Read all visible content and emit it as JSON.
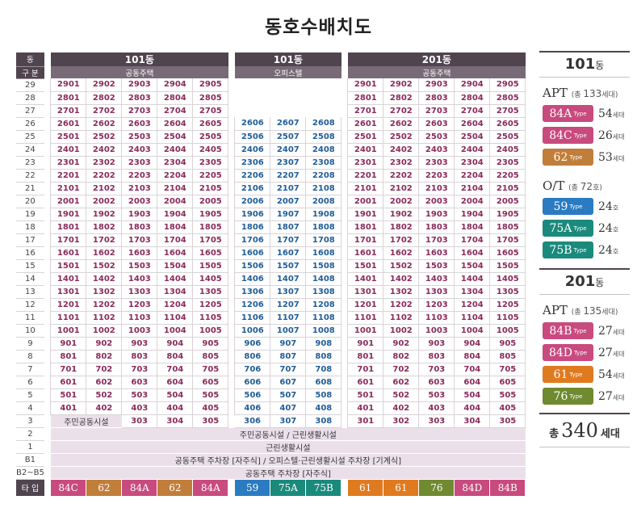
{
  "title": "동호수배치도",
  "header": {
    "row1_label": "동",
    "row2_label": "구 분",
    "blocks": [
      {
        "name": "101동",
        "kind": "공동주택"
      },
      {
        "name": "101동",
        "kind": "오피스텔"
      },
      {
        "name": "201동",
        "kind": "공동주택"
      }
    ]
  },
  "floors": [
    {
      "f": "29",
      "a": [
        "2901",
        "2902",
        "2903",
        "2904",
        "2905"
      ],
      "o": [],
      "b": [
        "2901",
        "2902",
        "2903",
        "2904",
        "2905"
      ]
    },
    {
      "f": "28",
      "a": [
        "2801",
        "2802",
        "2803",
        "2804",
        "2805"
      ],
      "o": [],
      "b": [
        "2801",
        "2802",
        "2803",
        "2804",
        "2805"
      ]
    },
    {
      "f": "27",
      "a": [
        "2701",
        "2702",
        "2703",
        "2704",
        "2705"
      ],
      "o": [],
      "b": [
        "2701",
        "2702",
        "2703",
        "2704",
        "2705"
      ]
    },
    {
      "f": "26",
      "a": [
        "2601",
        "2602",
        "2603",
        "2604",
        "2605"
      ],
      "o": [
        "2606",
        "2607",
        "2608"
      ],
      "b": [
        "2601",
        "2602",
        "2603",
        "2604",
        "2605"
      ]
    },
    {
      "f": "25",
      "a": [
        "2501",
        "2502",
        "2503",
        "2504",
        "2505"
      ],
      "o": [
        "2506",
        "2507",
        "2508"
      ],
      "b": [
        "2501",
        "2502",
        "2503",
        "2504",
        "2505"
      ]
    },
    {
      "f": "24",
      "a": [
        "2401",
        "2402",
        "2403",
        "2404",
        "2405"
      ],
      "o": [
        "2406",
        "2407",
        "2408"
      ],
      "b": [
        "2401",
        "2402",
        "2403",
        "2404",
        "2405"
      ]
    },
    {
      "f": "23",
      "a": [
        "2301",
        "2302",
        "2303",
        "2304",
        "2305"
      ],
      "o": [
        "2306",
        "2307",
        "2308"
      ],
      "b": [
        "2301",
        "2302",
        "2303",
        "2304",
        "2305"
      ]
    },
    {
      "f": "22",
      "a": [
        "2201",
        "2202",
        "2203",
        "2204",
        "2205"
      ],
      "o": [
        "2206",
        "2207",
        "2208"
      ],
      "b": [
        "2201",
        "2202",
        "2203",
        "2204",
        "2205"
      ]
    },
    {
      "f": "21",
      "a": [
        "2101",
        "2102",
        "2103",
        "2104",
        "2105"
      ],
      "o": [
        "2106",
        "2107",
        "2108"
      ],
      "b": [
        "2101",
        "2102",
        "2103",
        "2104",
        "2105"
      ]
    },
    {
      "f": "20",
      "a": [
        "2001",
        "2002",
        "2003",
        "2004",
        "2005"
      ],
      "o": [
        "2006",
        "2007",
        "2008"
      ],
      "b": [
        "2001",
        "2002",
        "2003",
        "2004",
        "2005"
      ]
    },
    {
      "f": "19",
      "a": [
        "1901",
        "1902",
        "1903",
        "1904",
        "1905"
      ],
      "o": [
        "1906",
        "1907",
        "1908"
      ],
      "b": [
        "1901",
        "1902",
        "1903",
        "1904",
        "1905"
      ]
    },
    {
      "f": "18",
      "a": [
        "1801",
        "1802",
        "1803",
        "1804",
        "1805"
      ],
      "o": [
        "1806",
        "1807",
        "1808"
      ],
      "b": [
        "1801",
        "1802",
        "1803",
        "1804",
        "1805"
      ]
    },
    {
      "f": "17",
      "a": [
        "1701",
        "1702",
        "1703",
        "1704",
        "1705"
      ],
      "o": [
        "1706",
        "1707",
        "1708"
      ],
      "b": [
        "1701",
        "1702",
        "1703",
        "1704",
        "1705"
      ]
    },
    {
      "f": "16",
      "a": [
        "1601",
        "1602",
        "1603",
        "1604",
        "1605"
      ],
      "o": [
        "1606",
        "1607",
        "1608"
      ],
      "b": [
        "1601",
        "1602",
        "1603",
        "1604",
        "1605"
      ]
    },
    {
      "f": "15",
      "a": [
        "1501",
        "1502",
        "1503",
        "1504",
        "1505"
      ],
      "o": [
        "1506",
        "1507",
        "1508"
      ],
      "b": [
        "1501",
        "1502",
        "1503",
        "1504",
        "1505"
      ]
    },
    {
      "f": "14",
      "a": [
        "1401",
        "1402",
        "1403",
        "1404",
        "1405"
      ],
      "o": [
        "1406",
        "1407",
        "1408"
      ],
      "b": [
        "1401",
        "1402",
        "1403",
        "1404",
        "1405"
      ]
    },
    {
      "f": "13",
      "a": [
        "1301",
        "1302",
        "1303",
        "1304",
        "1305"
      ],
      "o": [
        "1306",
        "1307",
        "1308"
      ],
      "b": [
        "1301",
        "1302",
        "1303",
        "1304",
        "1305"
      ]
    },
    {
      "f": "12",
      "a": [
        "1201",
        "1202",
        "1203",
        "1204",
        "1205"
      ],
      "o": [
        "1206",
        "1207",
        "1208"
      ],
      "b": [
        "1201",
        "1202",
        "1203",
        "1204",
        "1205"
      ]
    },
    {
      "f": "11",
      "a": [
        "1101",
        "1102",
        "1103",
        "1104",
        "1105"
      ],
      "o": [
        "1106",
        "1107",
        "1108"
      ],
      "b": [
        "1101",
        "1102",
        "1103",
        "1104",
        "1105"
      ]
    },
    {
      "f": "10",
      "a": [
        "1001",
        "1002",
        "1003",
        "1004",
        "1005"
      ],
      "o": [
        "1006",
        "1007",
        "1008"
      ],
      "b": [
        "1001",
        "1002",
        "1003",
        "1004",
        "1005"
      ]
    },
    {
      "f": "9",
      "a": [
        "901",
        "902",
        "903",
        "904",
        "905"
      ],
      "o": [
        "906",
        "907",
        "908"
      ],
      "b": [
        "901",
        "902",
        "903",
        "904",
        "905"
      ]
    },
    {
      "f": "8",
      "a": [
        "801",
        "802",
        "803",
        "804",
        "805"
      ],
      "o": [
        "806",
        "807",
        "808"
      ],
      "b": [
        "801",
        "802",
        "803",
        "804",
        "805"
      ]
    },
    {
      "f": "7",
      "a": [
        "701",
        "702",
        "703",
        "704",
        "705"
      ],
      "o": [
        "706",
        "707",
        "708"
      ],
      "b": [
        "701",
        "702",
        "703",
        "704",
        "705"
      ]
    },
    {
      "f": "6",
      "a": [
        "601",
        "602",
        "603",
        "604",
        "605"
      ],
      "o": [
        "606",
        "607",
        "608"
      ],
      "b": [
        "601",
        "602",
        "603",
        "604",
        "605"
      ]
    },
    {
      "f": "5",
      "a": [
        "501",
        "502",
        "503",
        "504",
        "505"
      ],
      "o": [
        "506",
        "507",
        "508"
      ],
      "b": [
        "501",
        "502",
        "503",
        "504",
        "505"
      ]
    },
    {
      "f": "4",
      "a": [
        "401",
        "402",
        "403",
        "404",
        "405"
      ],
      "o": [
        "406",
        "407",
        "408"
      ],
      "b": [
        "401",
        "402",
        "403",
        "404",
        "405"
      ]
    }
  ],
  "floor3": {
    "f": "3",
    "facility": "주민공동시설",
    "a": [
      "303",
      "304",
      "305"
    ],
    "o": [
      "306",
      "307",
      "308"
    ],
    "b": [
      "301",
      "302",
      "303",
      "304",
      "305"
    ]
  },
  "special_rows": [
    {
      "f": "2",
      "text": "주민공동시설 / 근린생활시설"
    },
    {
      "f": "1",
      "text": "근린생활시설"
    },
    {
      "f": "B1",
      "text": "공동주택 주차장 [자주식] / 오피스텔·근린생활시설 주차장 [기계식]"
    },
    {
      "f": "B2~B5",
      "text": "공동주택 주차장 [자주식]"
    }
  ],
  "types_row": {
    "label": "타 입",
    "a": [
      {
        "t": "84C",
        "color": "#c84a7e"
      },
      {
        "t": "62",
        "color": "#c07e3a"
      },
      {
        "t": "84A",
        "color": "#c84a7e"
      },
      {
        "t": "62",
        "color": "#c07e3a"
      },
      {
        "t": "84A",
        "color": "#c84a7e"
      }
    ],
    "o": [
      {
        "t": "59",
        "color": "#2a7bc2"
      },
      {
        "t": "75A",
        "color": "#1a8a7c"
      },
      {
        "t": "75B",
        "color": "#1a8a7c"
      }
    ],
    "b": [
      {
        "t": "61",
        "color": "#e07a1f"
      },
      {
        "t": "61",
        "color": "#e07a1f"
      },
      {
        "t": "76",
        "color": "#6f8a2f"
      },
      {
        "t": "84D",
        "color": "#c84a7e"
      },
      {
        "t": "84B",
        "color": "#c84a7e"
      }
    ]
  },
  "legend": {
    "b101": {
      "title": "101",
      "suffix": "동"
    },
    "apt101": {
      "label": "APT",
      "note_pre": "(총 ",
      "note_num": "133",
      "note_post": "세대)",
      "items": [
        {
          "t": "84A",
          "sub": "Type",
          "count": "54",
          "unit": "세대",
          "color": "#c84a7e"
        },
        {
          "t": "84C",
          "sub": "Type",
          "count": "26",
          "unit": "세대",
          "color": "#c84a7e"
        },
        {
          "t": "62",
          "sub": "Type",
          "count": "53",
          "unit": "세대",
          "color": "#c07e3a"
        }
      ]
    },
    "ot101": {
      "label": "O/T",
      "note_pre": "(총 ",
      "note_num": "72",
      "note_post": "호)",
      "items": [
        {
          "t": "59",
          "sub": "Type",
          "count": "24",
          "unit": "호",
          "color": "#2a7bc2"
        },
        {
          "t": "75A",
          "sub": "Type",
          "count": "24",
          "unit": "호",
          "color": "#1a8a7c"
        },
        {
          "t": "75B",
          "sub": "Type",
          "count": "24",
          "unit": "호",
          "color": "#1a8a7c"
        }
      ]
    },
    "b201": {
      "title": "201",
      "suffix": "동"
    },
    "apt201": {
      "label": "APT",
      "note_pre": "(총 ",
      "note_num": "135",
      "note_post": "세대)",
      "items": [
        {
          "t": "84B",
          "sub": "Type",
          "count": "27",
          "unit": "세대",
          "color": "#c84a7e"
        },
        {
          "t": "84D",
          "sub": "Type",
          "count": "27",
          "unit": "세대",
          "color": "#c84a7e"
        },
        {
          "t": "61",
          "sub": "Type",
          "count": "54",
          "unit": "세대",
          "color": "#e07a1f"
        },
        {
          "t": "76",
          "sub": "Type",
          "count": "27",
          "unit": "세대",
          "color": "#6f8a2f"
        }
      ]
    },
    "total": {
      "pre": "총",
      "num": "340",
      "unit": "세대"
    }
  }
}
